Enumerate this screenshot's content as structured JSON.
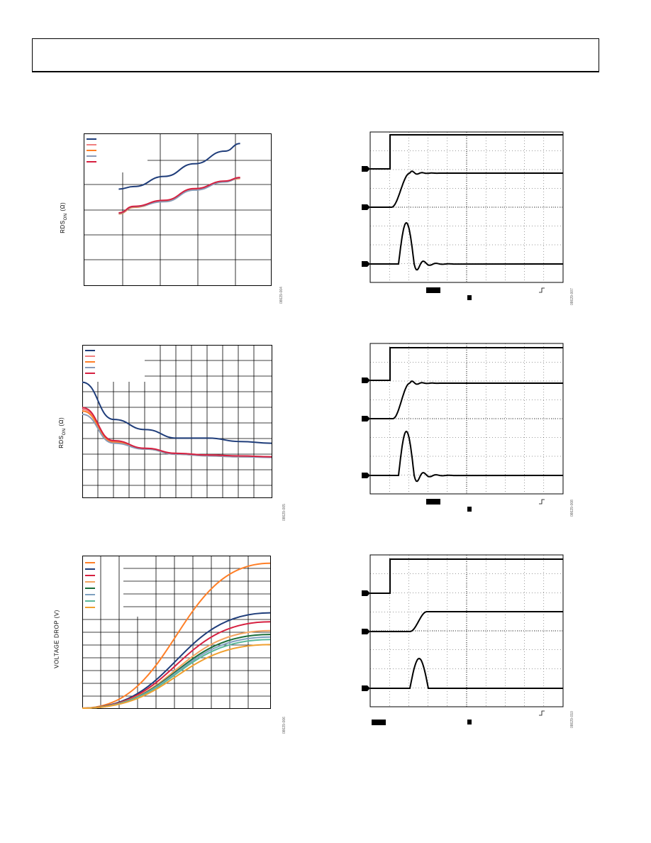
{
  "figure_ids": [
    "08629-004",
    "08629-005",
    "08629-006",
    "08629-007",
    "08629-008",
    "08629-010"
  ],
  "chart_data": [
    {
      "id": "top-left",
      "type": "line",
      "ylabel_main": "RDS",
      "ylabel_sub": "ON",
      "ylabel_unit": "(Ω)",
      "x": [
        0.5,
        1,
        2,
        3,
        4,
        4.5
      ],
      "xlim": [
        0,
        5
      ],
      "ylim": [
        0,
        6
      ],
      "series": [
        {
          "color": "#1f3d7a",
          "values": [
            3.8,
            3.9,
            4.3,
            4.8,
            5.3,
            5.6
          ]
        },
        {
          "color": "#f08080",
          "values": [
            2.85,
            3.1,
            3.35,
            3.8,
            4.1,
            4.25
          ]
        },
        {
          "color": "#ff7f27",
          "values": [
            2.82,
            3.08,
            3.33,
            3.78,
            4.1,
            4.22
          ]
        },
        {
          "color": "#8a9bb8",
          "values": [
            2.84,
            3.1,
            3.3,
            3.76,
            4.08,
            4.24
          ]
        },
        {
          "color": "#d62040",
          "values": [
            2.86,
            3.12,
            3.36,
            3.82,
            4.12,
            4.26
          ]
        }
      ]
    },
    {
      "id": "mid-left",
      "type": "line",
      "ylabel_main": "RDS",
      "ylabel_sub": "ON",
      "ylabel_unit": "(Ω)",
      "x": [
        0,
        1,
        2,
        3,
        4,
        5,
        6
      ],
      "xlim": [
        0,
        6
      ],
      "ylim": [
        0,
        9
      ],
      "series": [
        {
          "color": "#1f3d7a",
          "values": [
            6.8,
            4.6,
            4.0,
            3.5,
            3.5,
            3.3,
            3.2
          ]
        },
        {
          "color": "#f08080",
          "values": [
            5.2,
            3.3,
            2.9,
            2.6,
            2.5,
            2.45,
            2.4
          ]
        },
        {
          "color": "#ff7f27",
          "values": [
            5.1,
            3.25,
            2.85,
            2.55,
            2.45,
            2.4,
            2.38
          ]
        },
        {
          "color": "#8a9bb8",
          "values": [
            4.9,
            3.2,
            2.85,
            2.55,
            2.45,
            2.4,
            2.36
          ]
        },
        {
          "color": "#d62040",
          "values": [
            5.3,
            3.35,
            2.9,
            2.6,
            2.5,
            2.45,
            2.4
          ]
        }
      ]
    },
    {
      "id": "bottom-left",
      "type": "line",
      "ylabel_main": "VOLTAGE DROP (V)",
      "x": [
        0,
        1
      ],
      "xlim": [
        0,
        1
      ],
      "ylim": [
        0,
        12
      ],
      "series": [
        {
          "color": "#ff7f27",
          "values": [
            0,
            11.4
          ]
        },
        {
          "color": "#1f3d7a",
          "values": [
            0,
            7.5
          ]
        },
        {
          "color": "#d62040",
          "values": [
            0,
            6.8
          ]
        },
        {
          "color": "#f4a460",
          "values": [
            0,
            6.1
          ]
        },
        {
          "color": "#1b6e3a",
          "values": [
            0,
            5.8
          ]
        },
        {
          "color": "#7fa0c0",
          "values": [
            0,
            5.6
          ]
        },
        {
          "color": "#5ab89a",
          "values": [
            0,
            5.4
          ]
        },
        {
          "color": "#f0a030",
          "values": [
            0,
            5.0
          ]
        }
      ]
    }
  ]
}
